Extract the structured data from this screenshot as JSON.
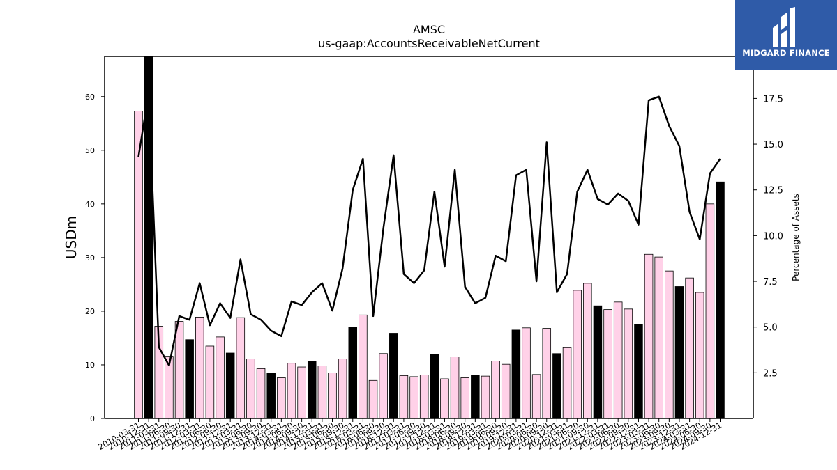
{
  "chart_data": {
    "type": "bar",
    "title": "AMSC",
    "subtitle": "us-gaap:AccountsReceivableNetCurrent",
    "ylabel": "USDm",
    "y2label": "Percentage of Assets",
    "ylim": [
      0,
      67.5
    ],
    "y2lim": [
      0,
      19.8
    ],
    "yticks": [
      0,
      10,
      20,
      30,
      40,
      50,
      60
    ],
    "y2ticks": [
      2.5,
      5.0,
      7.5,
      10.0,
      12.5,
      15.0,
      17.5
    ],
    "categories": [
      "2010-03-31",
      "2010-12-31",
      "2011-03-31",
      "2011-06-30",
      "2011-09-30",
      "2011-12-31",
      "2012-03-31",
      "2012-06-30",
      "2012-09-30",
      "2012-12-31",
      "2013-03-31",
      "2013-06-30",
      "2013-09-30",
      "2013-12-31",
      "2014-03-31",
      "2014-06-30",
      "2014-09-30",
      "2014-12-31",
      "2015-03-31",
      "2015-06-30",
      "2015-09-30",
      "2015-12-31",
      "2016-03-31",
      "2016-06-30",
      "2016-09-30",
      "2016-12-31",
      "2017-03-31",
      "2017-06-30",
      "2017-09-30",
      "2017-12-31",
      "2018-03-31",
      "2018-06-30",
      "2018-09-30",
      "2018-12-31",
      "2019-03-31",
      "2019-06-30",
      "2019-09-30",
      "2019-12-31",
      "2020-03-31",
      "2020-06-30",
      "2020-09-30",
      "2020-12-31",
      "2021-03-31",
      "2021-06-30",
      "2021-09-30",
      "2021-12-31",
      "2022-03-31",
      "2022-06-30",
      "2022-09-30",
      "2022-12-31",
      "2023-03-31",
      "2023-06-30",
      "2023-09-30",
      "2023-12-31",
      "2024-03-31",
      "2024-06-30",
      "2024-09-30",
      "2024-12-31"
    ],
    "series": [
      {
        "name": "AccountsReceivableNetCurrent",
        "chart": "bar",
        "axis": "left",
        "values": [
          57.3,
          67.5,
          17.2,
          11.6,
          18.1,
          14.7,
          18.9,
          13.5,
          15.2,
          12.2,
          18.8,
          11.1,
          9.3,
          8.5,
          7.6,
          10.3,
          9.6,
          10.7,
          9.8,
          8.5,
          11.1,
          17.0,
          19.3,
          7.1,
          12.1,
          15.9,
          8.0,
          7.8,
          8.1,
          12.0,
          7.4,
          11.5,
          7.6,
          8.0,
          7.9,
          10.7,
          10.1,
          16.5,
          16.9,
          8.2,
          16.8,
          12.1,
          13.2,
          23.9,
          25.2,
          21.0,
          20.3,
          21.7,
          20.4,
          17.5,
          30.6,
          30.1,
          27.5,
          24.6,
          26.2,
          23.5,
          40.0,
          44.1
        ],
        "highlight": [
          false,
          true,
          false,
          false,
          false,
          true,
          false,
          false,
          false,
          true,
          false,
          false,
          false,
          true,
          false,
          false,
          false,
          true,
          false,
          false,
          false,
          true,
          false,
          false,
          false,
          true,
          false,
          false,
          false,
          true,
          false,
          false,
          false,
          true,
          false,
          false,
          false,
          true,
          false,
          false,
          false,
          true,
          false,
          false,
          false,
          true,
          false,
          false,
          false,
          true,
          false,
          false,
          false,
          true,
          false,
          false,
          false,
          true
        ]
      },
      {
        "name": "Percentage of Assets",
        "chart": "line",
        "axis": "right",
        "values": [
          14.3,
          17.8,
          3.9,
          2.9,
          5.6,
          5.4,
          7.4,
          5.1,
          6.3,
          5.5,
          8.7,
          5.7,
          5.4,
          4.8,
          4.5,
          6.4,
          6.2,
          6.9,
          7.4,
          5.9,
          8.2,
          12.5,
          14.2,
          5.6,
          10.4,
          14.4,
          7.9,
          7.4,
          8.1,
          12.4,
          8.3,
          13.6,
          7.2,
          6.3,
          6.6,
          8.9,
          8.6,
          13.3,
          13.6,
          7.5,
          15.1,
          6.9,
          7.9,
          12.4,
          13.6,
          12.0,
          11.7,
          12.3,
          11.9,
          10.6,
          17.4,
          17.6,
          16.0,
          14.9,
          11.3,
          9.8,
          13.4,
          14.2
        ]
      }
    ],
    "colors": {
      "bar_fill": "#ffd1e8",
      "bar_highlight": "#000000",
      "bar_stroke": "#000000",
      "line": "#000000",
      "axis": "#000000"
    },
    "grid": false,
    "legend": "none"
  },
  "logo": {
    "text": "MIDGARD FINANCE",
    "background": "#2f5ba8"
  }
}
